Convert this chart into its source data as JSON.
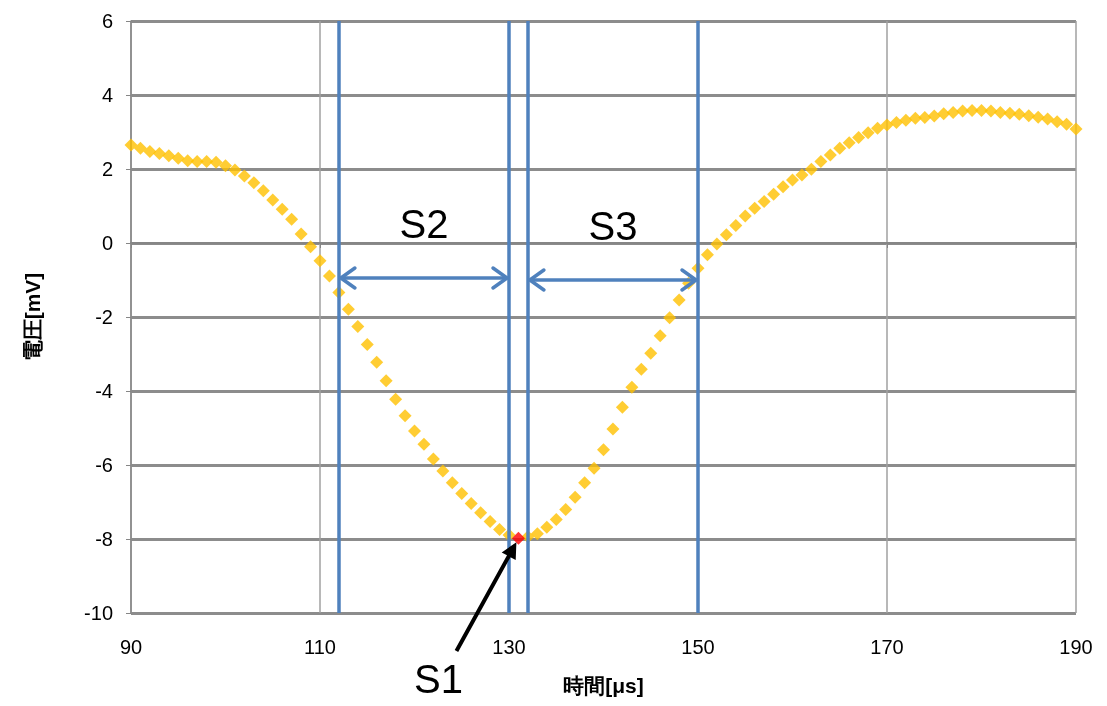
{
  "chart_data": {
    "type": "scatter",
    "xlabel": "時間[μs]",
    "ylabel": "電圧[mV]",
    "x": [
      90,
      91,
      92,
      93,
      94,
      95,
      96,
      97,
      98,
      99,
      100,
      101,
      102,
      103,
      104,
      105,
      106,
      107,
      108,
      109,
      110,
      111,
      112,
      113,
      114,
      115,
      116,
      117,
      118,
      119,
      120,
      121,
      122,
      123,
      124,
      125,
      126,
      127,
      128,
      129,
      130,
      131,
      132,
      133,
      134,
      135,
      136,
      137,
      138,
      139,
      140,
      141,
      142,
      143,
      144,
      145,
      146,
      147,
      148,
      149,
      150,
      151,
      152,
      153,
      154,
      155,
      156,
      157,
      158,
      159,
      160,
      161,
      162,
      163,
      164,
      165,
      166,
      167,
      168,
      169,
      170,
      171,
      172,
      173,
      174,
      175,
      176,
      177,
      178,
      179,
      180,
      181,
      182,
      183,
      184,
      185,
      186,
      187,
      188,
      189,
      190
    ],
    "series": [
      {
        "color": "#ffc000",
        "values": [
          2.65,
          2.56,
          2.47,
          2.42,
          2.36,
          2.29,
          2.22,
          2.2,
          2.2,
          2.18,
          2.09,
          1.97,
          1.81,
          1.63,
          1.41,
          1.16,
          0.91,
          0.64,
          0.24,
          -0.1,
          -0.48,
          -0.89,
          -1.34,
          -1.79,
          -2.26,
          -2.74,
          -3.22,
          -3.72,
          -4.22,
          -4.67,
          -5.08,
          -5.44,
          -5.84,
          -6.16,
          -6.48,
          -6.77,
          -7.04,
          -7.29,
          -7.53,
          -7.74,
          -7.89,
          null,
          -7.94,
          -7.86,
          -7.68,
          -7.47,
          -7.2,
          -6.87,
          -6.48,
          -6.09,
          -5.59,
          -5.03,
          -4.44,
          -3.9,
          -3.41,
          -2.98,
          -2.51,
          -2.02,
          -1.54,
          -1.09,
          -0.68,
          -0.32,
          -0.03,
          0.22,
          0.47,
          0.73,
          0.94,
          1.12,
          1.32,
          1.52,
          1.7,
          1.84,
          1.99,
          2.2,
          2.38,
          2.56,
          2.71,
          2.85,
          2.98,
          3.1,
          3.19,
          3.26,
          3.32,
          3.37,
          3.39,
          3.43,
          3.49,
          3.53,
          3.57,
          3.58,
          3.58,
          3.57,
          3.53,
          3.51,
          3.48,
          3.44,
          3.4,
          3.35,
          3.28,
          3.21,
          3.08
        ]
      },
      {
        "color": "#ff0000",
        "x": [
          131
        ],
        "values": [
          -7.98
        ]
      }
    ],
    "marker": "diamond",
    "grid": true,
    "xlim": [
      90,
      190
    ],
    "xticks": [
      90,
      110,
      130,
      150,
      170,
      190
    ],
    "ylim": [
      -10,
      6
    ],
    "yticks": [
      -10,
      -8,
      -6,
      -4,
      -2,
      0,
      2,
      4,
      6
    ],
    "ref_lines": [
      {
        "axis": "x",
        "value": 112,
        "color": "#4f81bd"
      },
      {
        "axis": "x",
        "value": 130,
        "color": "#4f81bd"
      },
      {
        "axis": "x",
        "value": 132,
        "color": "#4f81bd"
      },
      {
        "axis": "x",
        "value": 150,
        "color": "#4f81bd"
      }
    ],
    "annotations": [
      "S1",
      "S2",
      {
        "text": "S3",
        "x": 150,
        "y": -1
      }
    ]
  }
}
